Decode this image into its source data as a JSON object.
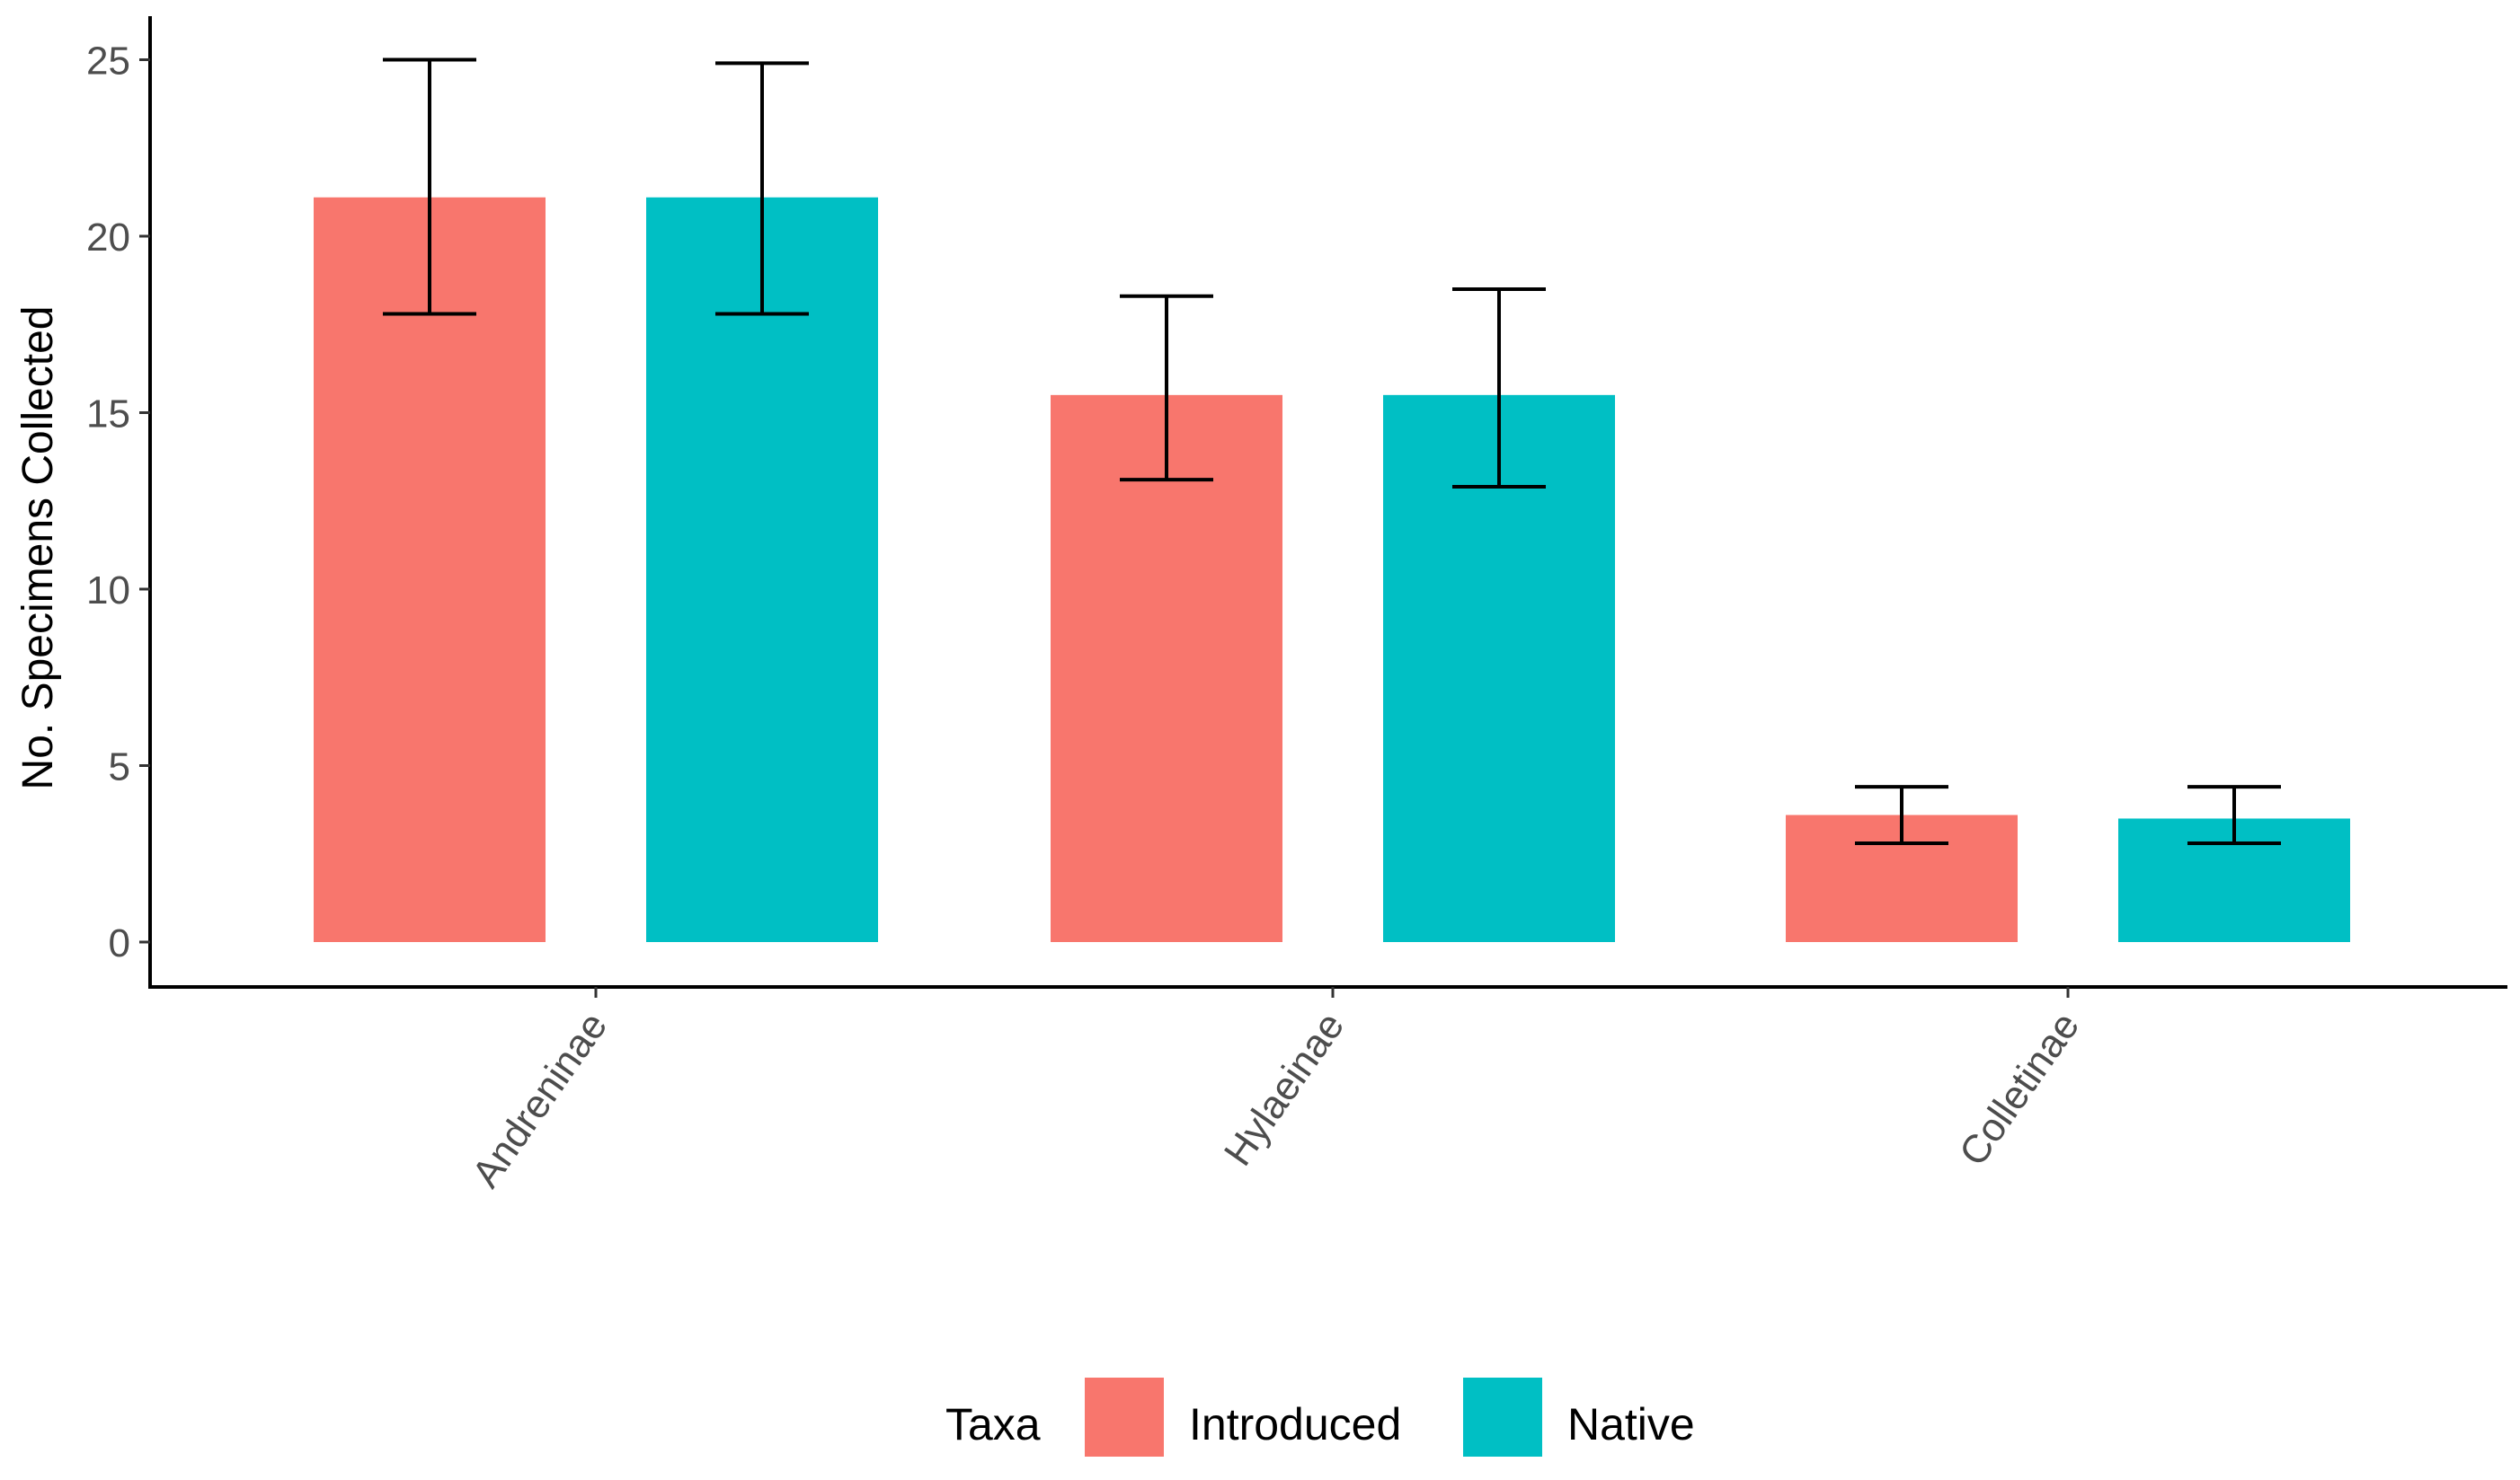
{
  "chart_data": {
    "type": "bar",
    "title": "",
    "xlabel": "",
    "ylabel": "No. Specimens Collected",
    "ylim": [
      0,
      26
    ],
    "yticks": [
      0,
      5,
      10,
      15,
      20,
      25
    ],
    "categories": [
      "Andreninae",
      "Hylaeinae",
      "Colletinae"
    ],
    "series": [
      {
        "name": "Introduced",
        "color": "#F8766D",
        "values": [
          21.1,
          15.5,
          3.6
        ],
        "error_low": [
          17.8,
          13.1,
          2.8
        ],
        "error_high": [
          25.0,
          18.3,
          4.4
        ]
      },
      {
        "name": "Native",
        "color": "#00BFC4",
        "values": [
          21.1,
          15.5,
          3.5
        ],
        "error_low": [
          17.8,
          12.9,
          2.8
        ],
        "error_high": [
          24.9,
          18.5,
          4.4
        ]
      }
    ],
    "legend": {
      "title": "Taxa",
      "position": "bottom",
      "entries": [
        "Introduced",
        "Native"
      ]
    },
    "grid": false
  }
}
